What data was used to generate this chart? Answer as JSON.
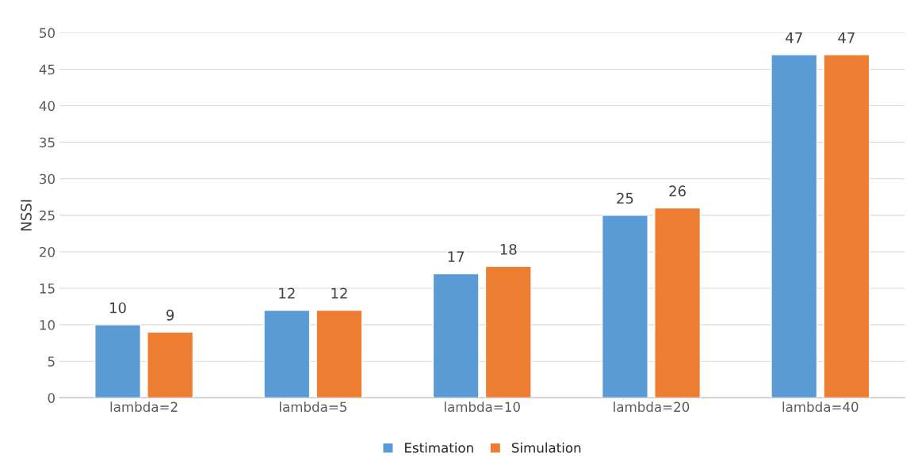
{
  "chart_data": {
    "type": "bar",
    "ylabel": "NSSI",
    "categories": [
      "lambda=2",
      "lambda=5",
      "lambda=10",
      "lambda=20",
      "lambda=40"
    ],
    "series": [
      {
        "name": "Estimation",
        "color": "#5b9bd5",
        "values": [
          10,
          12,
          17,
          25,
          47
        ]
      },
      {
        "name": "Simulation",
        "color": "#ed7d31",
        "values": [
          9,
          12,
          18,
          26,
          47
        ]
      }
    ],
    "ylim": [
      0,
      50
    ],
    "yticks": [
      0,
      5,
      10,
      15,
      20,
      25,
      30,
      35,
      40,
      45,
      50
    ],
    "grid": "y",
    "legend": "bottom",
    "data_labels": true
  }
}
